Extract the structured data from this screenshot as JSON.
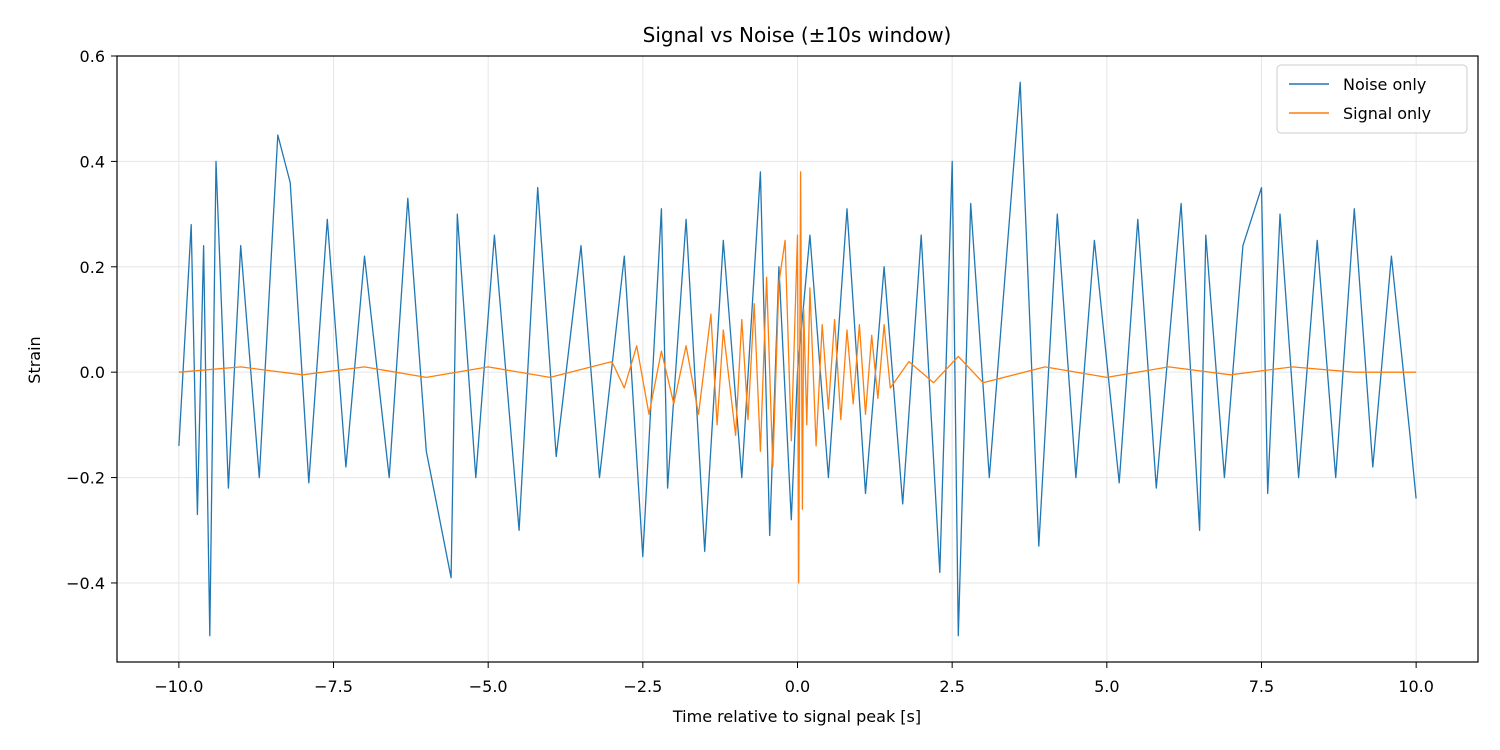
{
  "chart_data": {
    "type": "line",
    "title": "Signal vs Noise (±10s window)",
    "xlabel": "Time relative to signal peak [s]",
    "ylabel": "Strain",
    "xlim": [
      -11.0,
      11.0
    ],
    "ylim": [
      -0.55,
      0.6
    ],
    "xticks": [
      -10.0,
      -7.5,
      -5.0,
      -2.5,
      0.0,
      2.5,
      5.0,
      7.5,
      10.0
    ],
    "xtick_labels": [
      "−10.0",
      "−7.5",
      "−5.0",
      "−2.5",
      "0.0",
      "2.5",
      "5.0",
      "7.5",
      "10.0"
    ],
    "yticks": [
      -0.4,
      -0.2,
      0.0,
      0.2,
      0.4,
      0.6
    ],
    "ytick_labels": [
      "−0.4",
      "−0.2",
      "0.0",
      "0.2",
      "0.4",
      "0.6"
    ],
    "grid": true,
    "legend_position": "top-right",
    "series": [
      {
        "name": "Noise only",
        "color": "#1f77b4",
        "x": [
          -10.0,
          -9.8,
          -9.7,
          -9.6,
          -9.5,
          -9.4,
          -9.2,
          -9.0,
          -8.7,
          -8.4,
          -8.2,
          -7.9,
          -7.6,
          -7.3,
          -7.0,
          -6.6,
          -6.3,
          -6.0,
          -5.6,
          -5.5,
          -5.2,
          -4.9,
          -4.5,
          -4.2,
          -3.9,
          -3.5,
          -3.2,
          -2.8,
          -2.5,
          -2.2,
          -2.1,
          -1.8,
          -1.5,
          -1.2,
          -0.9,
          -0.6,
          -0.45,
          -0.3,
          -0.1,
          0.0,
          0.2,
          0.5,
          0.8,
          1.1,
          1.4,
          1.7,
          2.0,
          2.3,
          2.5,
          2.6,
          2.8,
          3.1,
          3.4,
          3.6,
          3.9,
          4.2,
          4.5,
          4.8,
          5.2,
          5.5,
          5.8,
          6.2,
          6.5,
          6.6,
          6.9,
          7.2,
          7.5,
          7.6,
          7.8,
          8.1,
          8.4,
          8.7,
          9.0,
          9.3,
          9.6,
          9.9,
          10.0
        ],
        "y": [
          -0.14,
          0.28,
          -0.27,
          0.24,
          -0.5,
          0.4,
          -0.22,
          0.24,
          -0.2,
          0.45,
          0.36,
          -0.21,
          0.29,
          -0.18,
          0.22,
          -0.2,
          0.33,
          -0.15,
          -0.39,
          0.3,
          -0.2,
          0.26,
          -0.3,
          0.35,
          -0.16,
          0.24,
          -0.2,
          0.22,
          -0.35,
          0.31,
          -0.22,
          0.29,
          -0.34,
          0.25,
          -0.2,
          0.38,
          -0.31,
          0.2,
          -0.28,
          0.0,
          0.26,
          -0.2,
          0.31,
          -0.23,
          0.2,
          -0.25,
          0.26,
          -0.38,
          0.4,
          -0.5,
          0.32,
          -0.2,
          0.25,
          0.55,
          -0.33,
          0.3,
          -0.2,
          0.25,
          -0.21,
          0.29,
          -0.22,
          0.32,
          -0.3,
          0.26,
          -0.2,
          0.24,
          0.35,
          -0.23,
          0.3,
          -0.2,
          0.25,
          -0.2,
          0.31,
          -0.18,
          0.22,
          -0.12,
          -0.24
        ]
      },
      {
        "name": "Signal only",
        "color": "#ff7f0e",
        "x": [
          -10.0,
          -9.0,
          -8.0,
          -7.0,
          -6.0,
          -5.0,
          -4.0,
          -3.0,
          -2.8,
          -2.6,
          -2.4,
          -2.2,
          -2.0,
          -1.8,
          -1.6,
          -1.4,
          -1.3,
          -1.2,
          -1.0,
          -0.9,
          -0.8,
          -0.7,
          -0.6,
          -0.5,
          -0.4,
          -0.3,
          -0.2,
          -0.1,
          0.0,
          0.02,
          0.05,
          0.08,
          0.1,
          0.15,
          0.2,
          0.3,
          0.4,
          0.5,
          0.6,
          0.7,
          0.8,
          0.9,
          1.0,
          1.1,
          1.2,
          1.3,
          1.4,
          1.5,
          1.8,
          2.2,
          2.6,
          3.0,
          4.0,
          5.0,
          6.0,
          7.0,
          8.0,
          9.0,
          10.0
        ],
        "y": [
          0.0,
          0.01,
          -0.005,
          0.01,
          -0.01,
          0.01,
          -0.01,
          0.02,
          -0.03,
          0.05,
          -0.08,
          0.04,
          -0.06,
          0.05,
          -0.08,
          0.11,
          -0.1,
          0.08,
          -0.12,
          0.1,
          -0.09,
          0.13,
          -0.15,
          0.18,
          -0.18,
          0.17,
          0.25,
          -0.13,
          0.26,
          -0.4,
          0.38,
          -0.26,
          0.12,
          -0.1,
          0.16,
          -0.14,
          0.09,
          -0.07,
          0.1,
          -0.09,
          0.08,
          -0.06,
          0.09,
          -0.08,
          0.07,
          -0.05,
          0.09,
          -0.03,
          0.02,
          -0.02,
          0.03,
          -0.02,
          0.01,
          -0.01,
          0.01,
          -0.005,
          0.01,
          0.0,
          0.0
        ]
      }
    ]
  }
}
